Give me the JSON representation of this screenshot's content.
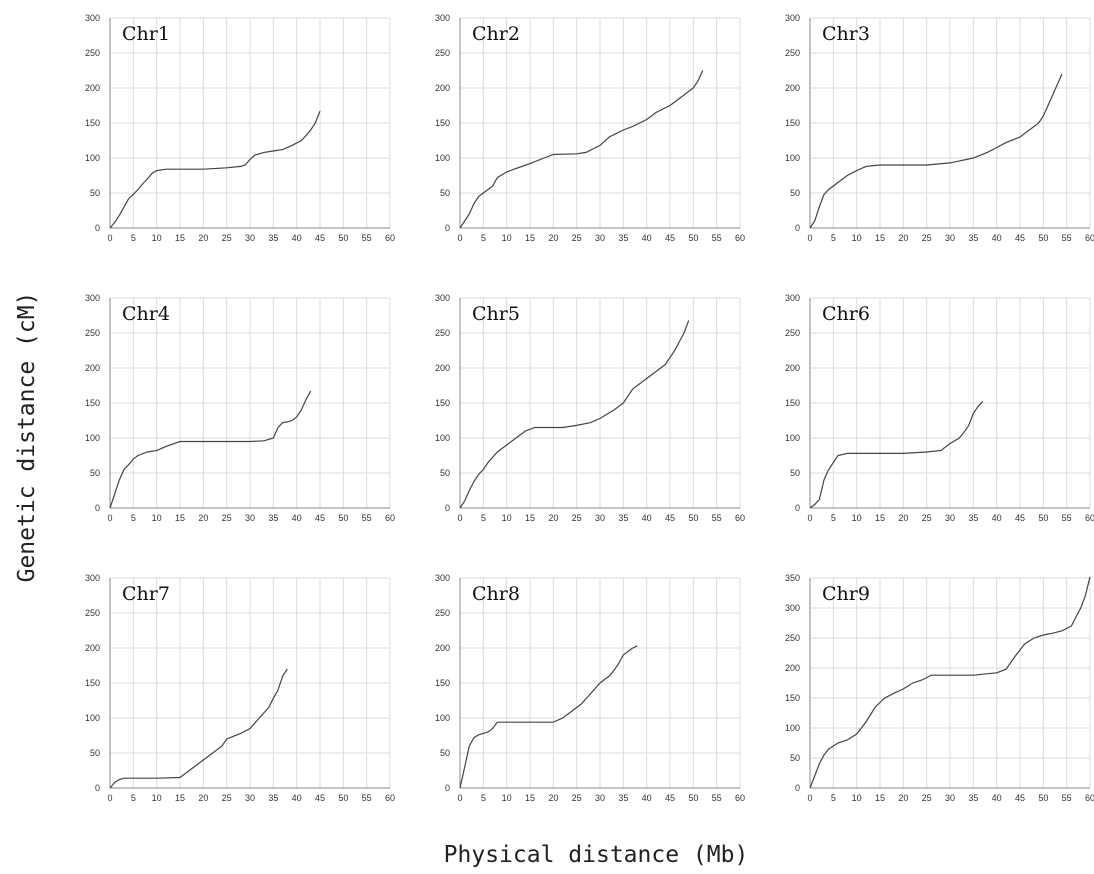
{
  "figure": {
    "xlabel": "Physical distance (Mb)",
    "ylabel": "Genetic distance (cM)"
  },
  "chart_data": [
    {
      "type": "line",
      "title": "Chr1",
      "xlim": [
        0,
        60
      ],
      "ylim": [
        0,
        300
      ],
      "x_ticks": [
        0,
        5,
        10,
        15,
        20,
        25,
        30,
        35,
        40,
        45,
        50,
        55,
        60
      ],
      "y_ticks": [
        0,
        50,
        100,
        150,
        200,
        250,
        300
      ],
      "grid": true,
      "x": [
        0,
        1,
        2,
        3,
        4,
        5,
        6,
        7,
        8,
        9,
        10,
        12,
        15,
        20,
        25,
        28,
        29,
        30,
        31,
        33,
        35,
        37,
        39,
        41,
        42,
        43,
        44,
        45
      ],
      "y": [
        0,
        8,
        18,
        30,
        42,
        48,
        55,
        63,
        70,
        78,
        82,
        84,
        84,
        84,
        86,
        88,
        90,
        98,
        104,
        108,
        110,
        112,
        118,
        125,
        132,
        140,
        150,
        167
      ]
    },
    {
      "type": "line",
      "title": "Chr2",
      "xlim": [
        0,
        60
      ],
      "ylim": [
        0,
        300
      ],
      "x_ticks": [
        0,
        5,
        10,
        15,
        20,
        25,
        30,
        35,
        40,
        45,
        50,
        55,
        60
      ],
      "y_ticks": [
        0,
        50,
        100,
        150,
        200,
        250,
        300
      ],
      "grid": true,
      "x": [
        0,
        1,
        2,
        3,
        4,
        5,
        6,
        7,
        8,
        10,
        12,
        15,
        18,
        20,
        25,
        27,
        30,
        32,
        35,
        37,
        40,
        42,
        45,
        47,
        50,
        51,
        52
      ],
      "y": [
        0,
        10,
        20,
        35,
        45,
        50,
        55,
        60,
        72,
        80,
        85,
        92,
        100,
        105,
        106,
        108,
        118,
        130,
        140,
        145,
        155,
        165,
        175,
        185,
        200,
        210,
        225
      ]
    },
    {
      "type": "line",
      "title": "Chr3",
      "xlim": [
        0,
        60
      ],
      "ylim": [
        0,
        300
      ],
      "x_ticks": [
        0,
        5,
        10,
        15,
        20,
        25,
        30,
        35,
        40,
        45,
        50,
        55,
        60
      ],
      "y_ticks": [
        0,
        50,
        100,
        150,
        200,
        250,
        300
      ],
      "grid": true,
      "x": [
        0,
        1,
        2,
        3,
        4,
        5,
        6,
        8,
        10,
        12,
        15,
        20,
        25,
        30,
        35,
        38,
        40,
        42,
        45,
        47,
        49,
        50,
        51,
        52,
        53,
        54
      ],
      "y": [
        0,
        10,
        30,
        48,
        55,
        60,
        65,
        75,
        82,
        88,
        90,
        90,
        90,
        93,
        100,
        108,
        115,
        122,
        130,
        140,
        150,
        160,
        175,
        190,
        205,
        220
      ]
    },
    {
      "type": "line",
      "title": "Chr4",
      "xlim": [
        0,
        60
      ],
      "ylim": [
        0,
        300
      ],
      "x_ticks": [
        0,
        5,
        10,
        15,
        20,
        25,
        30,
        35,
        40,
        45,
        50,
        55,
        60
      ],
      "y_ticks": [
        0,
        50,
        100,
        150,
        200,
        250,
        300
      ],
      "grid": true,
      "x": [
        0,
        1,
        2,
        3,
        4,
        5,
        6,
        8,
        10,
        12,
        15,
        20,
        25,
        30,
        33,
        35,
        36,
        37,
        38,
        39,
        40,
        41,
        42,
        43
      ],
      "y": [
        0,
        20,
        40,
        55,
        62,
        70,
        75,
        80,
        82,
        88,
        95,
        95,
        95,
        95,
        96,
        100,
        115,
        122,
        123,
        125,
        130,
        140,
        155,
        167
      ]
    },
    {
      "type": "line",
      "title": "Chr5",
      "xlim": [
        0,
        60
      ],
      "ylim": [
        0,
        300
      ],
      "x_ticks": [
        0,
        5,
        10,
        15,
        20,
        25,
        30,
        35,
        40,
        45,
        50,
        55,
        60
      ],
      "y_ticks": [
        0,
        50,
        100,
        150,
        200,
        250,
        300
      ],
      "grid": true,
      "x": [
        0,
        1,
        2,
        3,
        4,
        5,
        6,
        8,
        10,
        12,
        14,
        16,
        18,
        20,
        22,
        25,
        28,
        30,
        33,
        35,
        37,
        40,
        42,
        44,
        46,
        48,
        49
      ],
      "y": [
        0,
        10,
        25,
        38,
        48,
        55,
        65,
        80,
        90,
        100,
        110,
        115,
        115,
        115,
        115,
        118,
        122,
        128,
        140,
        150,
        170,
        185,
        195,
        205,
        225,
        250,
        268
      ]
    },
    {
      "type": "line",
      "title": "Chr6",
      "xlim": [
        0,
        60
      ],
      "ylim": [
        0,
        300
      ],
      "x_ticks": [
        0,
        5,
        10,
        15,
        20,
        25,
        30,
        35,
        40,
        45,
        50,
        55,
        60
      ],
      "y_ticks": [
        0,
        50,
        100,
        150,
        200,
        250,
        300
      ],
      "grid": true,
      "x": [
        0,
        1,
        2,
        3,
        4,
        5,
        6,
        8,
        10,
        15,
        20,
        25,
        28,
        30,
        32,
        33,
        34,
        35,
        36,
        37
      ],
      "y": [
        0,
        5,
        12,
        40,
        55,
        65,
        75,
        78,
        78,
        78,
        78,
        80,
        82,
        92,
        100,
        108,
        118,
        135,
        145,
        152
      ]
    },
    {
      "type": "line",
      "title": "Chr7",
      "xlim": [
        0,
        60
      ],
      "ylim": [
        0,
        300
      ],
      "x_ticks": [
        0,
        5,
        10,
        15,
        20,
        25,
        30,
        35,
        40,
        45,
        50,
        55,
        60
      ],
      "y_ticks": [
        0,
        50,
        100,
        150,
        200,
        250,
        300
      ],
      "grid": true,
      "x": [
        0,
        1,
        2,
        3,
        5,
        10,
        15,
        17,
        18,
        20,
        22,
        24,
        25,
        28,
        30,
        32,
        34,
        35,
        36,
        37,
        38
      ],
      "y": [
        0,
        8,
        12,
        14,
        14,
        14,
        15,
        25,
        30,
        40,
        50,
        60,
        70,
        78,
        85,
        100,
        115,
        128,
        140,
        160,
        170
      ]
    },
    {
      "type": "line",
      "title": "Chr8",
      "xlim": [
        0,
        60
      ],
      "ylim": [
        0,
        300
      ],
      "x_ticks": [
        0,
        5,
        10,
        15,
        20,
        25,
        30,
        35,
        40,
        45,
        50,
        55,
        60
      ],
      "y_ticks": [
        0,
        50,
        100,
        150,
        200,
        250,
        300
      ],
      "grid": true,
      "x": [
        0,
        1,
        2,
        3,
        4,
        5,
        6,
        7,
        8,
        10,
        15,
        20,
        22,
        24,
        26,
        28,
        30,
        32,
        33,
        34,
        35,
        36,
        37,
        38
      ],
      "y": [
        0,
        30,
        60,
        72,
        76,
        78,
        80,
        85,
        94,
        94,
        94,
        94,
        100,
        110,
        120,
        135,
        150,
        160,
        168,
        178,
        190,
        195,
        200,
        203
      ]
    },
    {
      "type": "line",
      "title": "Chr9",
      "xlim": [
        0,
        60
      ],
      "ylim": [
        0,
        350
      ],
      "x_ticks": [
        0,
        5,
        10,
        15,
        20,
        25,
        30,
        35,
        40,
        45,
        50,
        55,
        60
      ],
      "y_ticks": [
        0,
        50,
        100,
        150,
        200,
        250,
        300,
        350
      ],
      "grid": true,
      "x": [
        0,
        1,
        2,
        3,
        4,
        5,
        6,
        8,
        10,
        12,
        14,
        16,
        18,
        20,
        22,
        24,
        26,
        30,
        35,
        40,
        42,
        44,
        46,
        48,
        50,
        52,
        54,
        56,
        57,
        58,
        59,
        60
      ],
      "y": [
        0,
        20,
        40,
        55,
        65,
        70,
        75,
        80,
        90,
        110,
        135,
        150,
        158,
        165,
        175,
        180,
        188,
        188,
        188,
        192,
        198,
        220,
        240,
        250,
        255,
        258,
        262,
        270,
        285,
        300,
        320,
        352
      ]
    }
  ]
}
